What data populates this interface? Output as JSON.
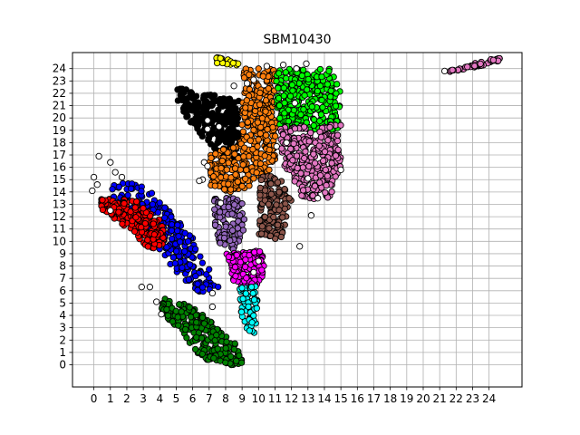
{
  "chart_data": {
    "type": "scatter",
    "title": "SBM10430",
    "xlabel": "",
    "ylabel": "",
    "xlim": [
      -1.3,
      26.0
    ],
    "ylim": [
      -1.8,
      25.3
    ],
    "x_ticks": [
      "0",
      "1",
      "2",
      "3",
      "4",
      "5",
      "6",
      "7",
      "8",
      "9",
      "10",
      "11",
      "12",
      "13",
      "14",
      "15",
      "16",
      "17",
      "18",
      "19",
      "20",
      "21",
      "22",
      "23",
      "24"
    ],
    "y_ticks": [
      "0",
      "1",
      "2",
      "3",
      "4",
      "5",
      "6",
      "7",
      "8",
      "9",
      "10",
      "11",
      "12",
      "13",
      "14",
      "15",
      "16",
      "17",
      "18",
      "19",
      "20",
      "21",
      "22",
      "23",
      "24"
    ],
    "grid": true,
    "colors": {
      "blue": "#0000ff",
      "red": "#ff0000",
      "green": "#008000",
      "black": "#000000",
      "orange": "#ff7f0e",
      "purple": "#9467bd",
      "brown": "#8c564b",
      "magenta": "#ff00ff",
      "cyan": "#00ffff",
      "lime": "#00ff00",
      "pink": "#e377c2",
      "yellow": "#ffff00",
      "unassigned": "#ffffff"
    },
    "clusters": [
      {
        "color": "blue",
        "region": [
          [
            1.0,
            14.6
          ],
          [
            2.5,
            14.8
          ],
          [
            4.0,
            13.5
          ],
          [
            5.8,
            10.8
          ],
          [
            7.6,
            6.3
          ],
          [
            6.4,
            5.8
          ],
          [
            4.5,
            8.2
          ],
          [
            3.0,
            10.6
          ],
          [
            1.2,
            13.0
          ]
        ],
        "approx_points": 260
      },
      {
        "color": "red",
        "region": [
          [
            0.5,
            13.8
          ],
          [
            2.8,
            13.2
          ],
          [
            4.0,
            11.8
          ],
          [
            4.5,
            9.8
          ],
          [
            3.5,
            9.3
          ],
          [
            2.0,
            11.0
          ],
          [
            0.3,
            12.8
          ]
        ],
        "approx_points": 200
      },
      {
        "color": "green",
        "region": [
          [
            3.8,
            5.5
          ],
          [
            6.0,
            4.8
          ],
          [
            9.2,
            1.0
          ],
          [
            9.0,
            -0.2
          ],
          [
            7.0,
            -0.1
          ],
          [
            4.2,
            4.2
          ]
        ],
        "approx_points": 220
      },
      {
        "color": "black",
        "region": [
          [
            5.0,
            22.5
          ],
          [
            6.8,
            22.0
          ],
          [
            8.8,
            21.4
          ],
          [
            8.8,
            16.5
          ],
          [
            7.4,
            17.0
          ],
          [
            5.1,
            21.0
          ]
        ],
        "approx_points": 230
      },
      {
        "color": "orange",
        "region": [
          [
            7.0,
            17.2
          ],
          [
            8.8,
            17.8
          ],
          [
            9.1,
            24.0
          ],
          [
            11.0,
            24.0
          ],
          [
            11.1,
            16.8
          ],
          [
            10.5,
            15.2
          ],
          [
            8.5,
            13.8
          ],
          [
            7.0,
            14.3
          ]
        ],
        "approx_points": 420
      },
      {
        "color": "purple",
        "region": [
          [
            7.3,
            13.5
          ],
          [
            9.2,
            13.5
          ],
          [
            9.1,
            11.0
          ],
          [
            8.6,
            9.2
          ],
          [
            7.4,
            10.0
          ]
        ],
        "approx_points": 110
      },
      {
        "color": "brown",
        "region": [
          [
            10.1,
            15.5
          ],
          [
            11.3,
            15.1
          ],
          [
            12.1,
            13.3
          ],
          [
            11.3,
            10.0
          ],
          [
            10.0,
            10.5
          ]
        ],
        "approx_points": 150
      },
      {
        "color": "magenta",
        "region": [
          [
            8.0,
            9.0
          ],
          [
            10.2,
            9.3
          ],
          [
            10.4,
            7.2
          ],
          [
            9.7,
            6.0
          ],
          [
            8.3,
            6.8
          ]
        ],
        "approx_points": 140
      },
      {
        "color": "cyan",
        "region": [
          [
            8.8,
            6.2
          ],
          [
            10.0,
            6.5
          ],
          [
            9.8,
            2.5
          ],
          [
            9.0,
            3.0
          ]
        ],
        "approx_points": 60
      },
      {
        "color": "lime",
        "region": [
          [
            11.0,
            24.0
          ],
          [
            14.5,
            24.0
          ],
          [
            15.0,
            22.3
          ],
          [
            14.8,
            19.0
          ],
          [
            11.2,
            19.0
          ]
        ],
        "approx_points": 300
      },
      {
        "color": "pink",
        "region": [
          [
            11.3,
            19.2
          ],
          [
            15.0,
            19.5
          ],
          [
            15.0,
            16.0
          ],
          [
            14.3,
            13.3
          ],
          [
            12.7,
            13.5
          ],
          [
            11.4,
            16.5
          ]
        ],
        "approx_points": 300
      },
      {
        "color": "yellow",
        "region": [
          [
            7.0,
            25.0
          ],
          [
            8.0,
            24.9
          ],
          [
            9.2,
            24.7
          ],
          [
            8.8,
            24.2
          ],
          [
            7.2,
            24.5
          ]
        ],
        "approx_points": 22
      },
      {
        "color": "pink",
        "region": [
          [
            21.3,
            23.7
          ],
          [
            23.5,
            24.6
          ],
          [
            25.0,
            25.0
          ],
          [
            24.7,
            24.6
          ],
          [
            22.4,
            23.9
          ]
        ],
        "approx_points": 45
      }
    ],
    "outliers": [
      [
        0.3,
        16.9
      ],
      [
        1.0,
        16.4
      ],
      [
        1.3,
        15.6
      ],
      [
        0.0,
        15.2
      ],
      [
        -0.1,
        14.1
      ],
      [
        0.2,
        14.6
      ],
      [
        1.7,
        15.2
      ],
      [
        1.0,
        12.5
      ],
      [
        2.9,
        6.3
      ],
      [
        3.4,
        6.3
      ],
      [
        3.8,
        5.1
      ],
      [
        4.1,
        4.1
      ],
      [
        7.2,
        4.7
      ],
      [
        7.2,
        5.8
      ],
      [
        6.7,
        16.4
      ],
      [
        6.9,
        16.1
      ],
      [
        6.6,
        15.0
      ],
      [
        6.4,
        14.9
      ],
      [
        6.9,
        19.8
      ],
      [
        7.6,
        19.3
      ],
      [
        8.5,
        22.6
      ],
      [
        9.3,
        22.8
      ],
      [
        9.7,
        23.1
      ],
      [
        10.5,
        24.2
      ],
      [
        11.5,
        24.3
      ],
      [
        12.3,
        24.0
      ],
      [
        12.9,
        24.4
      ],
      [
        12.2,
        21.2
      ],
      [
        11.7,
        18.0
      ],
      [
        11.1,
        17.7
      ],
      [
        12.5,
        9.6
      ],
      [
        13.2,
        12.1
      ],
      [
        13.6,
        13.5
      ],
      [
        15.0,
        15.8
      ],
      [
        13.0,
        15.1
      ],
      [
        10.0,
        8.4
      ],
      [
        9.7,
        7.5
      ],
      [
        7.7,
        13.1
      ],
      [
        6.9,
        19.1
      ],
      [
        21.3,
        23.8
      ]
    ]
  }
}
